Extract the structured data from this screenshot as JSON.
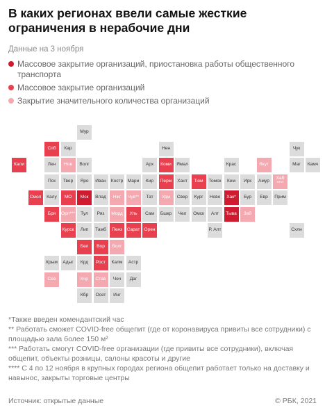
{
  "title": "В каких регионах ввели самые жесткие ограничения в нерабочие дни",
  "subtitle": "Данные на 3 ноября",
  "colors": {
    "l0": "#dcdcdc",
    "l1": "#f4a9b0",
    "l2": "#e9404f",
    "l3": "#d01a2f"
  },
  "legend": [
    {
      "level": 3,
      "label": "Массовое закрытие организаций, приостановка работы общественного транспорта"
    },
    {
      "level": 2,
      "label": "Массовое закрытие организаций"
    },
    {
      "level": 1,
      "label": "Закрытие значительного количества организаций"
    }
  ],
  "regions": [
    {
      "label": "Мур",
      "row": 0,
      "col": 4,
      "level": 0
    },
    {
      "label": "Чук",
      "row": 1,
      "col": 17,
      "level": 0
    },
    {
      "label": "Спб",
      "row": 1,
      "col": 2,
      "level": 2
    },
    {
      "label": "Кар",
      "row": 1,
      "col": 3,
      "level": 0
    },
    {
      "label": "Нен",
      "row": 1,
      "col": 9,
      "level": 0
    },
    {
      "label": "Кали",
      "row": 2,
      "col": 0,
      "level": 2
    },
    {
      "label": "Лен",
      "row": 2,
      "col": 2,
      "level": 0
    },
    {
      "label": "Нов",
      "row": 2,
      "col": 3,
      "level": 1
    },
    {
      "label": "Волг",
      "row": 2,
      "col": 4,
      "level": 0
    },
    {
      "label": "Арх",
      "row": 2,
      "col": 8,
      "level": 0
    },
    {
      "label": "Коми",
      "row": 2,
      "col": 9,
      "level": 2
    },
    {
      "label": "Ямал",
      "row": 2,
      "col": 10,
      "level": 0
    },
    {
      "label": "Крас",
      "row": 2,
      "col": 13,
      "level": 0
    },
    {
      "label": "Якут",
      "row": 2,
      "col": 15,
      "level": 1
    },
    {
      "label": "Маг",
      "row": 2,
      "col": 17,
      "level": 0
    },
    {
      "label": "Камч",
      "row": 2,
      "col": 18,
      "level": 0
    },
    {
      "label": "Пск",
      "row": 3,
      "col": 2,
      "level": 0
    },
    {
      "label": "Твер",
      "row": 3,
      "col": 3,
      "level": 0
    },
    {
      "label": "Яро",
      "row": 3,
      "col": 4,
      "level": 0
    },
    {
      "label": "Иван",
      "row": 3,
      "col": 5,
      "level": 0
    },
    {
      "label": "Костр",
      "row": 3,
      "col": 6,
      "level": 0
    },
    {
      "label": "Мари",
      "row": 3,
      "col": 7,
      "level": 0
    },
    {
      "label": "Кир",
      "row": 3,
      "col": 8,
      "level": 0
    },
    {
      "label": "Перм",
      "row": 3,
      "col": 9,
      "level": 2
    },
    {
      "label": "Хант",
      "row": 3,
      "col": 10,
      "level": 0
    },
    {
      "label": "Тюм",
      "row": 3,
      "col": 11,
      "level": 2
    },
    {
      "label": "Томск",
      "row": 3,
      "col": 12,
      "level": 0
    },
    {
      "label": "Кем",
      "row": 3,
      "col": 13,
      "level": 0
    },
    {
      "label": "Ирк",
      "row": 3,
      "col": 14,
      "level": 0
    },
    {
      "label": "Амур",
      "row": 3,
      "col": 15,
      "level": 0
    },
    {
      "label": "Хаб",
      "sub": "****",
      "row": 3,
      "col": 16,
      "level": 1
    },
    {
      "label": "Смол",
      "row": 4,
      "col": 1,
      "level": 2
    },
    {
      "label": "Калу",
      "row": 4,
      "col": 2,
      "level": 0
    },
    {
      "label": "МО",
      "row": 4,
      "col": 3,
      "level": 2
    },
    {
      "label": "Мск",
      "row": 4,
      "col": 4,
      "level": 3
    },
    {
      "label": "Влад",
      "row": 4,
      "col": 5,
      "level": 0
    },
    {
      "label": "Нжг",
      "row": 4,
      "col": 6,
      "level": 1
    },
    {
      "label": "Чув**",
      "row": 4,
      "col": 7,
      "level": 1
    },
    {
      "label": "Тат",
      "row": 4,
      "col": 8,
      "level": 0
    },
    {
      "label": "Удм",
      "row": 4,
      "col": 9,
      "level": 1
    },
    {
      "label": "Свер",
      "row": 4,
      "col": 10,
      "level": 0
    },
    {
      "label": "Кург",
      "row": 4,
      "col": 11,
      "level": 0
    },
    {
      "label": "Ново",
      "row": 4,
      "col": 12,
      "level": 0
    },
    {
      "label": "Хак*",
      "row": 4,
      "col": 13,
      "level": 3
    },
    {
      "label": "Бур",
      "row": 4,
      "col": 14,
      "level": 0
    },
    {
      "label": "Евр",
      "row": 4,
      "col": 15,
      "level": 0
    },
    {
      "label": "Прим",
      "row": 4,
      "col": 16,
      "level": 0
    },
    {
      "label": "Бря",
      "row": 5,
      "col": 2,
      "level": 2
    },
    {
      "label": "Орл***",
      "row": 5,
      "col": 3,
      "level": 1
    },
    {
      "label": "Тул",
      "row": 5,
      "col": 4,
      "level": 0
    },
    {
      "label": "Ряз",
      "row": 5,
      "col": 5,
      "level": 0
    },
    {
      "label": "Морд",
      "row": 5,
      "col": 6,
      "level": 1
    },
    {
      "label": "Уль",
      "row": 5,
      "col": 7,
      "level": 2
    },
    {
      "label": "Сам",
      "row": 5,
      "col": 8,
      "level": 0
    },
    {
      "label": "Бшкр",
      "row": 5,
      "col": 9,
      "level": 0
    },
    {
      "label": "Чел",
      "row": 5,
      "col": 10,
      "level": 0
    },
    {
      "label": "Омск",
      "row": 5,
      "col": 11,
      "level": 0
    },
    {
      "label": "Алт",
      "row": 5,
      "col": 12,
      "level": 0
    },
    {
      "label": "Тыва",
      "row": 5,
      "col": 13,
      "level": 3
    },
    {
      "label": "Заб",
      "row": 5,
      "col": 14,
      "level": 1
    },
    {
      "label": "Курск",
      "row": 6,
      "col": 3,
      "level": 2
    },
    {
      "label": "Лип",
      "row": 6,
      "col": 4,
      "level": 0
    },
    {
      "label": "Тамб",
      "row": 6,
      "col": 5,
      "level": 0
    },
    {
      "label": "Пенз",
      "row": 6,
      "col": 6,
      "level": 2
    },
    {
      "label": "Сарат",
      "row": 6,
      "col": 7,
      "level": 2
    },
    {
      "label": "Орен",
      "row": 6,
      "col": 8,
      "level": 2
    },
    {
      "label": "Р. Алт",
      "row": 6,
      "col": 12,
      "level": 0
    },
    {
      "label": "Схлн",
      "row": 6,
      "col": 17,
      "level": 0
    },
    {
      "label": "Бел",
      "row": 7,
      "col": 4,
      "level": 2
    },
    {
      "label": "Вор",
      "row": 7,
      "col": 5,
      "level": 2
    },
    {
      "label": "Волг",
      "row": 7,
      "col": 6,
      "level": 1
    },
    {
      "label": "Крым",
      "row": 8,
      "col": 2,
      "level": 0
    },
    {
      "label": "Адыг",
      "row": 8,
      "col": 3,
      "level": 0
    },
    {
      "label": "Крд",
      "row": 8,
      "col": 4,
      "level": 0
    },
    {
      "label": "Рост",
      "row": 8,
      "col": 5,
      "level": 2
    },
    {
      "label": "Калм",
      "row": 8,
      "col": 6,
      "level": 0
    },
    {
      "label": "Астр",
      "row": 8,
      "col": 7,
      "level": 0
    },
    {
      "label": "Сев",
      "row": 9,
      "col": 2,
      "level": 1
    },
    {
      "label": "Кчр",
      "row": 9,
      "col": 4,
      "level": 1
    },
    {
      "label": "Став",
      "row": 9,
      "col": 5,
      "level": 1
    },
    {
      "label": "Чеч",
      "row": 9,
      "col": 6,
      "level": 0
    },
    {
      "label": "Даг",
      "row": 9,
      "col": 7,
      "level": 0
    },
    {
      "label": "Кбр",
      "row": 10,
      "col": 4,
      "level": 0
    },
    {
      "label": "Осет",
      "row": 10,
      "col": 5,
      "level": 0
    },
    {
      "label": "Инг",
      "row": 10,
      "col": 6,
      "level": 0
    }
  ],
  "notes": [
    "*Также введен комендантский час",
    "** Работать сможет COVID-free общепит (где от коронавируса привиты все сотрудники) с площадью зала более 150 м²",
    "*** Работать смогут COVID-free организации (где привиты все сотрудники), включая общепит, объекты розницы, салоны красоты и другие",
    "**** С 4 по 12 ноября в крупных городах региона общепит работает только на доставку и навынос, закрыты торговые центры"
  ],
  "footer": {
    "source": "Источник:  открытые данные",
    "copyright": "© РБК, 2021"
  }
}
